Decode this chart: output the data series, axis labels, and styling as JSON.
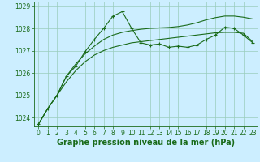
{
  "bg_color": "#cceeff",
  "grid_color": "#99ccbb",
  "line_color": "#1a6b1a",
  "xlabel": "Graphe pression niveau de la mer (hPa)",
  "xlim": [
    -0.5,
    23.5
  ],
  "ylim": [
    1023.6,
    1029.2
  ],
  "yticks": [
    1024,
    1025,
    1026,
    1027,
    1028,
    1029
  ],
  "xticks": [
    0,
    1,
    2,
    3,
    4,
    5,
    6,
    7,
    8,
    9,
    10,
    11,
    12,
    13,
    14,
    15,
    16,
    17,
    18,
    19,
    20,
    21,
    22,
    23
  ],
  "series1_x": [
    0,
    1,
    2,
    3,
    4,
    5,
    6,
    7,
    8,
    9,
    10,
    11,
    12,
    13,
    14,
    15,
    16,
    17,
    18,
    19,
    20,
    21,
    22,
    23
  ],
  "series1_y": [
    1023.7,
    1024.4,
    1025.0,
    1025.85,
    1026.3,
    1026.95,
    1027.5,
    1028.0,
    1028.55,
    1028.75,
    1028.0,
    1027.35,
    1027.25,
    1027.3,
    1027.15,
    1027.2,
    1027.15,
    1027.25,
    1027.5,
    1027.7,
    1028.05,
    1028.0,
    1027.7,
    1027.35
  ],
  "series2_x": [
    0,
    1,
    2,
    3,
    4,
    5,
    6,
    7,
    8,
    9,
    10,
    11,
    12,
    13,
    14,
    15,
    16,
    17,
    18,
    19,
    20,
    21,
    22,
    23
  ],
  "series2_y": [
    1023.7,
    1024.4,
    1025.0,
    1025.6,
    1026.1,
    1026.5,
    1026.8,
    1027.0,
    1027.15,
    1027.25,
    1027.35,
    1027.4,
    1027.45,
    1027.5,
    1027.55,
    1027.6,
    1027.65,
    1027.7,
    1027.75,
    1027.8,
    1027.82,
    1027.82,
    1027.78,
    1027.4
  ],
  "series3_x": [
    0,
    1,
    2,
    3,
    4,
    5,
    6,
    7,
    8,
    9,
    10,
    11,
    12,
    13,
    14,
    15,
    16,
    17,
    18,
    19,
    20,
    21,
    22,
    23
  ],
  "series3_y": [
    1023.7,
    1024.4,
    1025.0,
    1025.85,
    1026.4,
    1026.85,
    1027.2,
    1027.5,
    1027.7,
    1027.82,
    1027.9,
    1027.96,
    1028.0,
    1028.02,
    1028.04,
    1028.08,
    1028.15,
    1028.25,
    1028.38,
    1028.48,
    1028.55,
    1028.55,
    1028.5,
    1028.42
  ],
  "tick_fontsize": 5.5,
  "label_fontsize": 7.0
}
